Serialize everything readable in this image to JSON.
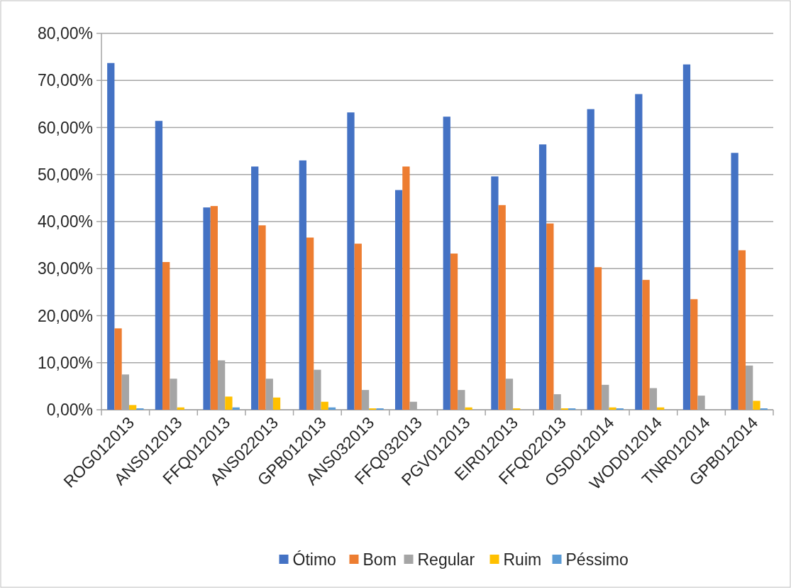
{
  "chart_data": {
    "type": "bar",
    "categories": [
      "ROG012013",
      "ANS012013",
      "FFQ012013",
      "ANS022013",
      "GPB012013",
      "ANS032013",
      "FFQ032013",
      "PGV012013",
      "EIR012013",
      "FFQ022013",
      "OSD012014",
      "WOD012014",
      "TNR012014",
      "GPB012014"
    ],
    "series": [
      {
        "name": "Ótimo",
        "color": "#4472c4",
        "values": [
          73.7,
          61.4,
          43.0,
          51.7,
          53.0,
          63.2,
          46.7,
          62.3,
          49.6,
          56.4,
          63.9,
          67.1,
          73.4,
          54.6
        ]
      },
      {
        "name": "Bom",
        "color": "#ed7d31",
        "values": [
          17.3,
          31.4,
          43.3,
          39.2,
          36.6,
          35.3,
          51.7,
          33.2,
          43.5,
          39.6,
          30.3,
          27.6,
          23.5,
          33.9
        ]
      },
      {
        "name": "Regular",
        "color": "#a5a5a5",
        "values": [
          7.5,
          6.6,
          10.5,
          6.6,
          8.5,
          4.2,
          1.7,
          4.2,
          6.6,
          3.3,
          5.3,
          4.6,
          3.0,
          9.4
        ]
      },
      {
        "name": "Ruim",
        "color": "#ffc000",
        "values": [
          1.0,
          0.5,
          2.8,
          2.6,
          1.7,
          0.3,
          0,
          0.5,
          0.3,
          0.3,
          0.5,
          0.5,
          0,
          1.9
        ]
      },
      {
        "name": "Péssimo",
        "color": "#5b9bd5",
        "values": [
          0.3,
          0,
          0.5,
          0,
          0.5,
          0.3,
          0,
          0,
          0,
          0.3,
          0.3,
          0,
          0,
          0.3
        ]
      }
    ],
    "ylim": [
      0,
      80
    ],
    "yticks": [
      {
        "value": 0,
        "label": "0,00%"
      },
      {
        "value": 10,
        "label": "10,00%"
      },
      {
        "value": 20,
        "label": "20,00%"
      },
      {
        "value": 30,
        "label": "30,00%"
      },
      {
        "value": 40,
        "label": "40,00%"
      },
      {
        "value": 50,
        "label": "50,00%"
      },
      {
        "value": 60,
        "label": "60,00%"
      },
      {
        "value": 70,
        "label": "70,00%"
      },
      {
        "value": 80,
        "label": "80,00%"
      }
    ],
    "grid": "y",
    "legend": "bottom"
  }
}
